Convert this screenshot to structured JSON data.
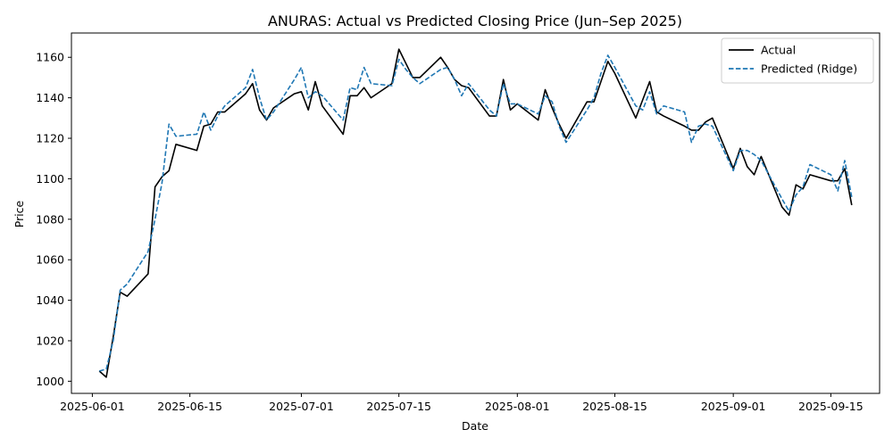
{
  "chart_data": {
    "type": "line",
    "title": "ANURAS: Actual vs Predicted Closing Price (Jun–Sep 2025)",
    "xlabel": "Date",
    "ylabel": "Price",
    "xlim": [
      "2025-05-29",
      "2025-09-22"
    ],
    "ylim": [
      994,
      1172
    ],
    "x_ticks": [
      "2025-06-01",
      "2025-06-15",
      "2025-07-01",
      "2025-07-15",
      "2025-08-01",
      "2025-08-15",
      "2025-09-01",
      "2025-09-15"
    ],
    "y_ticks": [
      1000,
      1020,
      1040,
      1060,
      1080,
      1100,
      1120,
      1140,
      1160
    ],
    "grid": false,
    "legend_position": "top-right",
    "series": [
      {
        "name": "Actual",
        "color": "#000000",
        "dash": "solid",
        "points": [
          [
            "2025-06-02",
            1005
          ],
          [
            "2025-06-03",
            1002
          ],
          [
            "2025-06-04",
            1022
          ],
          [
            "2025-06-05",
            1044
          ],
          [
            "2025-06-06",
            1042
          ],
          [
            "2025-06-09",
            1053
          ],
          [
            "2025-06-10",
            1096
          ],
          [
            "2025-06-11",
            1101
          ],
          [
            "2025-06-12",
            1104
          ],
          [
            "2025-06-13",
            1117
          ],
          [
            "2025-06-16",
            1114
          ],
          [
            "2025-06-17",
            1126
          ],
          [
            "2025-06-18",
            1127
          ],
          [
            "2025-06-19",
            1133
          ],
          [
            "2025-06-20",
            1133
          ],
          [
            "2025-06-23",
            1142
          ],
          [
            "2025-06-24",
            1147
          ],
          [
            "2025-06-25",
            1134
          ],
          [
            "2025-06-26",
            1129
          ],
          [
            "2025-06-27",
            1135
          ],
          [
            "2025-06-30",
            1142
          ],
          [
            "2025-07-01",
            1143
          ],
          [
            "2025-07-02",
            1134
          ],
          [
            "2025-07-03",
            1148
          ],
          [
            "2025-07-04",
            1136
          ],
          [
            "2025-07-07",
            1122
          ],
          [
            "2025-07-08",
            1141
          ],
          [
            "2025-07-09",
            1141
          ],
          [
            "2025-07-10",
            1145
          ],
          [
            "2025-07-11",
            1140
          ],
          [
            "2025-07-14",
            1147
          ],
          [
            "2025-07-15",
            1164
          ],
          [
            "2025-07-16",
            1157
          ],
          [
            "2025-07-17",
            1150
          ],
          [
            "2025-07-18",
            1150
          ],
          [
            "2025-07-21",
            1160
          ],
          [
            "2025-07-22",
            1155
          ],
          [
            "2025-07-23",
            1149
          ],
          [
            "2025-07-24",
            1146
          ],
          [
            "2025-07-25",
            1145
          ],
          [
            "2025-07-28",
            1131
          ],
          [
            "2025-07-29",
            1131
          ],
          [
            "2025-07-30",
            1149
          ],
          [
            "2025-07-31",
            1134
          ],
          [
            "2025-08-01",
            1137
          ],
          [
            "2025-08-04",
            1129
          ],
          [
            "2025-08-05",
            1144
          ],
          [
            "2025-08-06",
            1135
          ],
          [
            "2025-08-07",
            1127
          ],
          [
            "2025-08-08",
            1120
          ],
          [
            "2025-08-11",
            1138
          ],
          [
            "2025-08-12",
            1138
          ],
          [
            "2025-08-13",
            1148
          ],
          [
            "2025-08-14",
            1158
          ],
          [
            "2025-08-15",
            1152
          ],
          [
            "2025-08-18",
            1130
          ],
          [
            "2025-08-19",
            1139
          ],
          [
            "2025-08-20",
            1148
          ],
          [
            "2025-08-21",
            1133
          ],
          [
            "2025-08-22",
            1131
          ],
          [
            "2025-08-25",
            1126
          ],
          [
            "2025-08-26",
            1124
          ],
          [
            "2025-08-27",
            1124
          ],
          [
            "2025-08-28",
            1128
          ],
          [
            "2025-08-29",
            1130
          ],
          [
            "2025-09-01",
            1105
          ],
          [
            "2025-09-02",
            1115
          ],
          [
            "2025-09-03",
            1106
          ],
          [
            "2025-09-04",
            1102
          ],
          [
            "2025-09-05",
            1111
          ],
          [
            "2025-09-08",
            1086
          ],
          [
            "2025-09-09",
            1082
          ],
          [
            "2025-09-10",
            1097
          ],
          [
            "2025-09-11",
            1095
          ],
          [
            "2025-09-12",
            1102
          ],
          [
            "2025-09-15",
            1099
          ],
          [
            "2025-09-16",
            1099
          ],
          [
            "2025-09-17",
            1105
          ],
          [
            "2025-09-18",
            1087
          ]
        ]
      },
      {
        "name": "Predicted (Ridge)",
        "color": "#1f77b4",
        "dash": "dashed",
        "points": [
          [
            "2025-06-02",
            1005
          ],
          [
            "2025-06-03",
            1006
          ],
          [
            "2025-06-04",
            1020
          ],
          [
            "2025-06-05",
            1045
          ],
          [
            "2025-06-06",
            1048
          ],
          [
            "2025-06-09",
            1064
          ],
          [
            "2025-06-10",
            1080
          ],
          [
            "2025-06-11",
            1098
          ],
          [
            "2025-06-12",
            1127
          ],
          [
            "2025-06-13",
            1121
          ],
          [
            "2025-06-16",
            1122
          ],
          [
            "2025-06-17",
            1133
          ],
          [
            "2025-06-18",
            1124
          ],
          [
            "2025-06-19",
            1131
          ],
          [
            "2025-06-20",
            1136
          ],
          [
            "2025-06-23",
            1145
          ],
          [
            "2025-06-24",
            1154
          ],
          [
            "2025-06-25",
            1140
          ],
          [
            "2025-06-26",
            1129
          ],
          [
            "2025-06-27",
            1133
          ],
          [
            "2025-06-30",
            1149
          ],
          [
            "2025-07-01",
            1155
          ],
          [
            "2025-07-02",
            1140
          ],
          [
            "2025-07-03",
            1143
          ],
          [
            "2025-07-04",
            1141
          ],
          [
            "2025-07-07",
            1129
          ],
          [
            "2025-07-08",
            1145
          ],
          [
            "2025-07-09",
            1144
          ],
          [
            "2025-07-10",
            1155
          ],
          [
            "2025-07-11",
            1147
          ],
          [
            "2025-07-14",
            1146
          ],
          [
            "2025-07-15",
            1159
          ],
          [
            "2025-07-16",
            1154
          ],
          [
            "2025-07-17",
            1150
          ],
          [
            "2025-07-18",
            1147
          ],
          [
            "2025-07-21",
            1154
          ],
          [
            "2025-07-22",
            1155
          ],
          [
            "2025-07-23",
            1149
          ],
          [
            "2025-07-24",
            1141
          ],
          [
            "2025-07-25",
            1147
          ],
          [
            "2025-07-28",
            1134
          ],
          [
            "2025-07-29",
            1131
          ],
          [
            "2025-07-30",
            1147
          ],
          [
            "2025-07-31",
            1137
          ],
          [
            "2025-08-01",
            1137
          ],
          [
            "2025-08-04",
            1132
          ],
          [
            "2025-08-05",
            1141
          ],
          [
            "2025-08-06",
            1138
          ],
          [
            "2025-08-07",
            1126
          ],
          [
            "2025-08-08",
            1118
          ],
          [
            "2025-08-11",
            1134
          ],
          [
            "2025-08-12",
            1140
          ],
          [
            "2025-08-13",
            1152
          ],
          [
            "2025-08-14",
            1161
          ],
          [
            "2025-08-15",
            1155
          ],
          [
            "2025-08-18",
            1136
          ],
          [
            "2025-08-19",
            1134
          ],
          [
            "2025-08-20",
            1143
          ],
          [
            "2025-08-21",
            1132
          ],
          [
            "2025-08-22",
            1136
          ],
          [
            "2025-08-25",
            1133
          ],
          [
            "2025-08-26",
            1118
          ],
          [
            "2025-08-27",
            1126
          ],
          [
            "2025-08-28",
            1127
          ],
          [
            "2025-08-29",
            1126
          ],
          [
            "2025-09-01",
            1104
          ],
          [
            "2025-09-02",
            1114
          ],
          [
            "2025-09-03",
            1114
          ],
          [
            "2025-09-04",
            1112
          ],
          [
            "2025-09-05",
            1109
          ],
          [
            "2025-09-08",
            1090
          ],
          [
            "2025-09-09",
            1084
          ],
          [
            "2025-09-10",
            1092
          ],
          [
            "2025-09-11",
            1096
          ],
          [
            "2025-09-12",
            1107
          ],
          [
            "2025-09-15",
            1102
          ],
          [
            "2025-09-16",
            1094
          ],
          [
            "2025-09-17",
            1109
          ],
          [
            "2025-09-18",
            1091
          ]
        ]
      }
    ]
  }
}
